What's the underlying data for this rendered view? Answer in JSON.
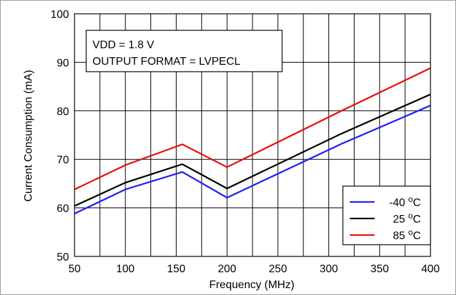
{
  "chart_data": {
    "type": "line",
    "xlabel": "Frequency (MHz)",
    "ylabel": "Current Consumption (mA)",
    "xlim": [
      50,
      400
    ],
    "ylim": [
      50,
      100
    ],
    "xticks": [
      "50",
      "100",
      "150",
      "200",
      "250",
      "300",
      "350",
      "400"
    ],
    "yticks": [
      "50",
      "60",
      "70",
      "80",
      "90",
      "100"
    ],
    "x_minor_step": 25,
    "y_minor_step": 10,
    "grid": true,
    "annotation": [
      "VDD = 1.8 V",
      "OUTPUT FORMAT = LVPECL"
    ],
    "legend_position": "bottom-right",
    "series": [
      {
        "name": "-40 °C",
        "color": "#1f1fff",
        "x": [
          50,
          100,
          156,
          200,
          312.5,
          400
        ],
        "y": [
          58.8,
          63.8,
          67.4,
          62.1,
          73.2,
          81.1
        ]
      },
      {
        "name": "25 °C",
        "color": "#000000",
        "x": [
          50,
          100,
          156,
          200,
          312.5,
          400
        ],
        "y": [
          60.4,
          65.2,
          69.0,
          64.0,
          75.3,
          83.4
        ]
      },
      {
        "name": "85 °C",
        "color": "#e81010",
        "x": [
          50,
          100,
          156,
          200,
          312.5,
          400
        ],
        "y": [
          63.8,
          68.8,
          73.1,
          68.4,
          80.0,
          88.8
        ]
      }
    ]
  }
}
